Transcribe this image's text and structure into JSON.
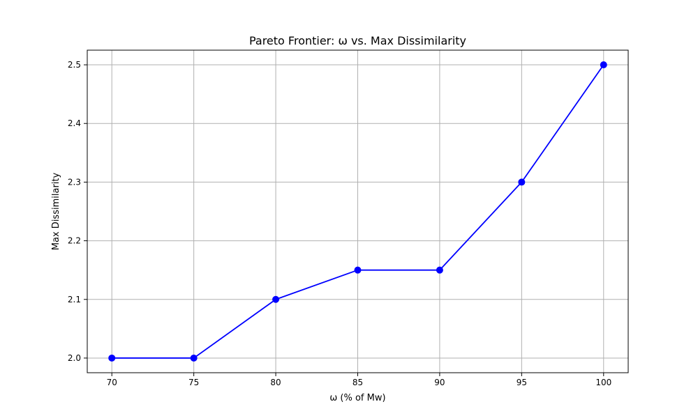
{
  "chart_data": {
    "type": "line",
    "title": "Pareto Frontier: ω vs. Max Dissimilarity",
    "xlabel": "ω (% of Mw)",
    "ylabel": "Max Dissimilarity",
    "x": [
      70,
      75,
      80,
      85,
      90,
      95,
      100
    ],
    "series": [
      {
        "values": [
          2.0,
          2.0,
          2.1,
          2.15,
          2.15,
          2.3,
          2.5
        ]
      }
    ],
    "xticks": [
      "70",
      "75",
      "80",
      "85",
      "90",
      "95",
      "100"
    ],
    "yticks": [
      "2.0",
      "2.1",
      "2.2",
      "2.3",
      "2.4",
      "2.5"
    ],
    "xlim": [
      68.5,
      101.5
    ],
    "ylim": [
      1.975,
      2.525
    ],
    "grid": true,
    "line_color": "#0000ff",
    "marker": "circle",
    "grid_color": "#b0b0b0"
  }
}
